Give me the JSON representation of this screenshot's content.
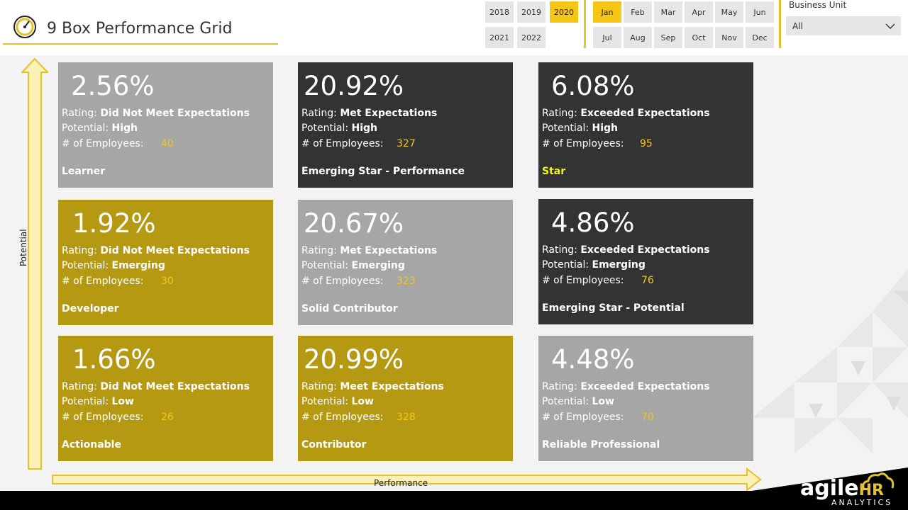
{
  "header": {
    "title": "9 Box Performance Grid",
    "years": [
      {
        "label": "2018",
        "selected": false
      },
      {
        "label": "2019",
        "selected": false
      },
      {
        "label": "2020",
        "selected": true
      },
      {
        "label": "2021",
        "selected": false
      },
      {
        "label": "2022",
        "selected": false
      }
    ],
    "months": [
      {
        "label": "Jan",
        "selected": true
      },
      {
        "label": "Feb",
        "selected": false
      },
      {
        "label": "Mar",
        "selected": false
      },
      {
        "label": "Apr",
        "selected": false
      },
      {
        "label": "May",
        "selected": false
      },
      {
        "label": "Jun",
        "selected": false
      },
      {
        "label": "Jul",
        "selected": false
      },
      {
        "label": "Aug",
        "selected": false
      },
      {
        "label": "Sep",
        "selected": false
      },
      {
        "label": "Oct",
        "selected": false
      },
      {
        "label": "Nov",
        "selected": false
      },
      {
        "label": "Dec",
        "selected": false
      }
    ],
    "business_unit": {
      "label": "Business Unit",
      "value": "All"
    }
  },
  "axes": {
    "y_label": "Potential",
    "x_label": "Performance"
  },
  "labels": {
    "rating": "Rating: ",
    "potential": "Potential: ",
    "employees": "# of Employees:"
  },
  "boxes": [
    {
      "pct": "2.56%",
      "rating": "Did Not Meet Expectations",
      "potential": "High",
      "employees": "40",
      "category": "Learner"
    },
    {
      "pct": "20.92%",
      "rating": "Met Expectations",
      "potential": "High",
      "employees": "327",
      "category": "Emerging Star - Performance"
    },
    {
      "pct": "6.08%",
      "rating": "Exceeded Expectations",
      "potential": "High",
      "employees": "95",
      "category": "Star"
    },
    {
      "pct": "1.92%",
      "rating": "Did Not Meet Expectations",
      "potential": "Emerging",
      "employees": "30",
      "category": "Developer"
    },
    {
      "pct": "20.67%",
      "rating": "Met Expectations",
      "potential": "Emerging",
      "employees": "323",
      "category": "Solid Contributor"
    },
    {
      "pct": "4.86%",
      "rating": "Exceeded Expectations",
      "potential": "Emerging",
      "employees": "76",
      "category": "Emerging Star - Potential"
    },
    {
      "pct": "1.66%",
      "rating": "Did Not Meet Expectations",
      "potential": "Low",
      "employees": "26",
      "category": "Actionable"
    },
    {
      "pct": "20.99%",
      "rating": "Meet Expectations",
      "potential": "Low",
      "employees": "328",
      "category": "Contributor"
    },
    {
      "pct": "4.48%",
      "rating": "Exceeded Expectations",
      "potential": "Low",
      "employees": "70",
      "category": "Reliable Professional"
    }
  ],
  "colors": {
    "accent": "#f5c518",
    "gold_box": "#b69913",
    "gray_box": "#a6a6a6",
    "dark_box": "#333333",
    "star_label": "#f5f518"
  },
  "brand": {
    "name": "agile",
    "suffix": "HR",
    "sub": "ANALYTICS"
  }
}
